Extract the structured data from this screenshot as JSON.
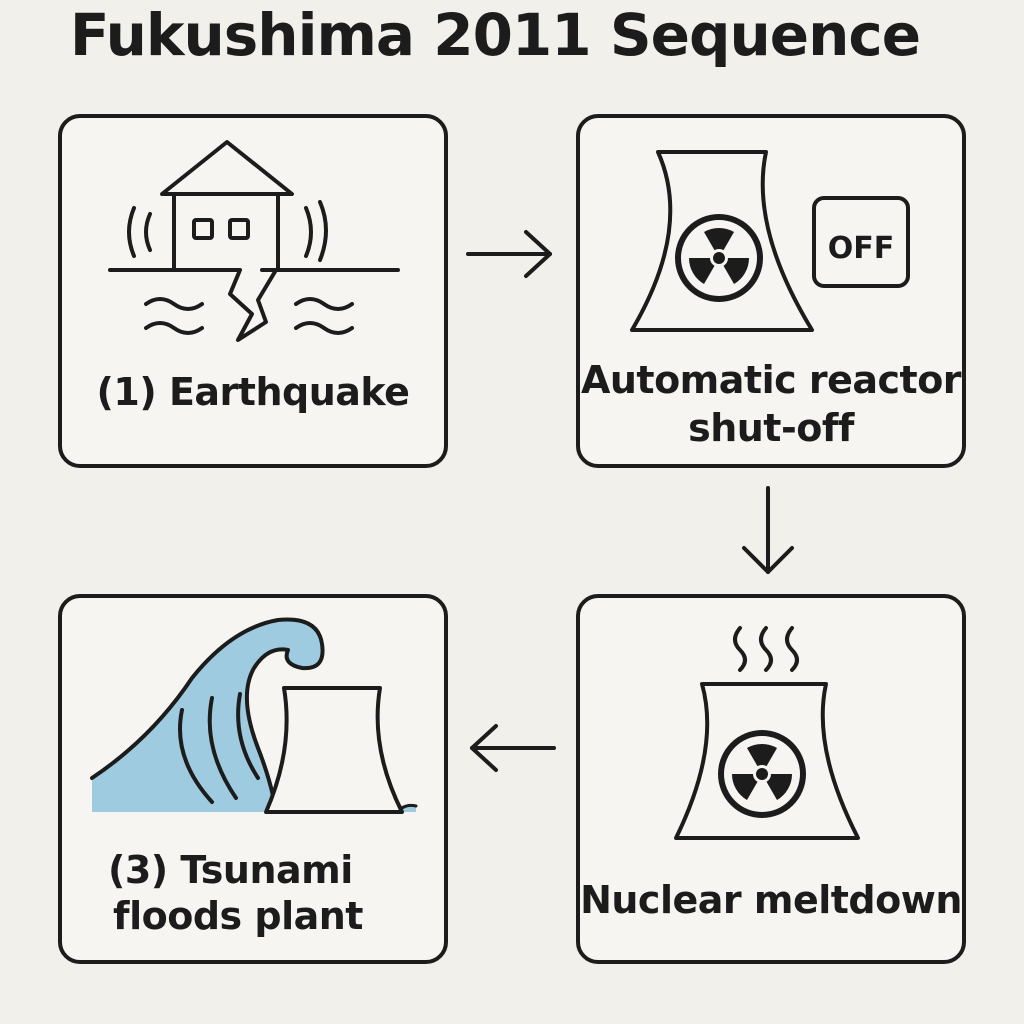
{
  "title": "Fukushima 2011 Sequence",
  "steps": [
    {
      "label": "(1) Earthquake",
      "icon": "earthquake-house-icon"
    },
    {
      "label_line1": "Automatic reactor",
      "label_line2": "shut-off",
      "icon": "reactor-off-icon",
      "badge": "OFF"
    },
    {
      "label": "Nuclear meltdown",
      "icon": "reactor-meltdown-icon"
    },
    {
      "label_line1": "(3) Tsunami",
      "label_line2": "floods plant",
      "icon": "tsunami-plant-icon"
    }
  ],
  "colors": {
    "background": "#f1f0eb",
    "stroke": "#1c1c1c",
    "water": "#9fcbe0"
  }
}
